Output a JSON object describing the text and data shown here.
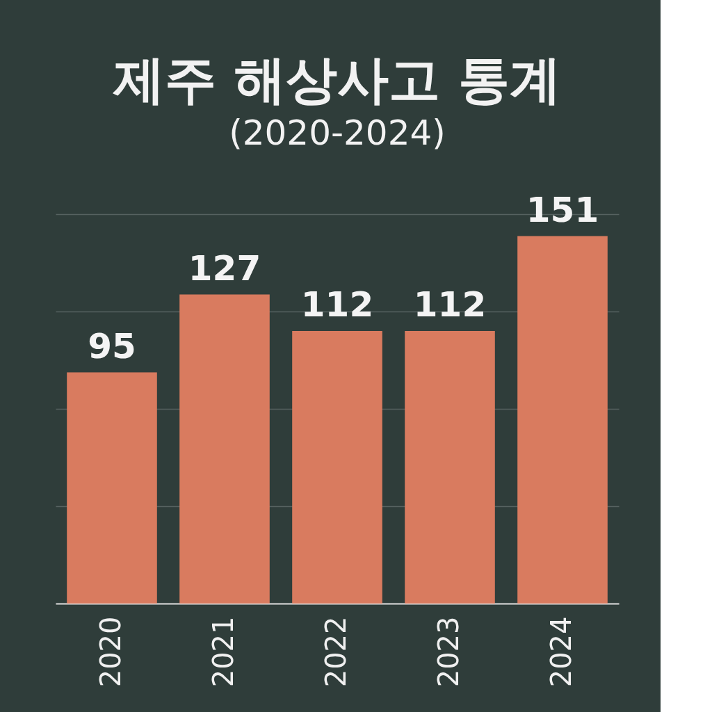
{
  "chart_data": {
    "type": "bar",
    "title": "제주 해상사고 통계",
    "subtitle": "(2020-2024)",
    "categories": [
      "2020",
      "2021",
      "2022",
      "2023",
      "2024"
    ],
    "values": [
      95,
      127,
      112,
      112,
      151
    ],
    "color": "#d97b5f",
    "ylim": [
      0,
      160
    ],
    "yticks": [
      {
        "value": 0,
        "label": null
      },
      {
        "value": 40,
        "label": null
      },
      {
        "value": 80,
        "label": null
      },
      {
        "value": 120,
        "label": null
      },
      {
        "value": 160,
        "label": null
      }
    ],
    "grid": "y",
    "data_labels": true,
    "tick_labels": "x"
  }
}
